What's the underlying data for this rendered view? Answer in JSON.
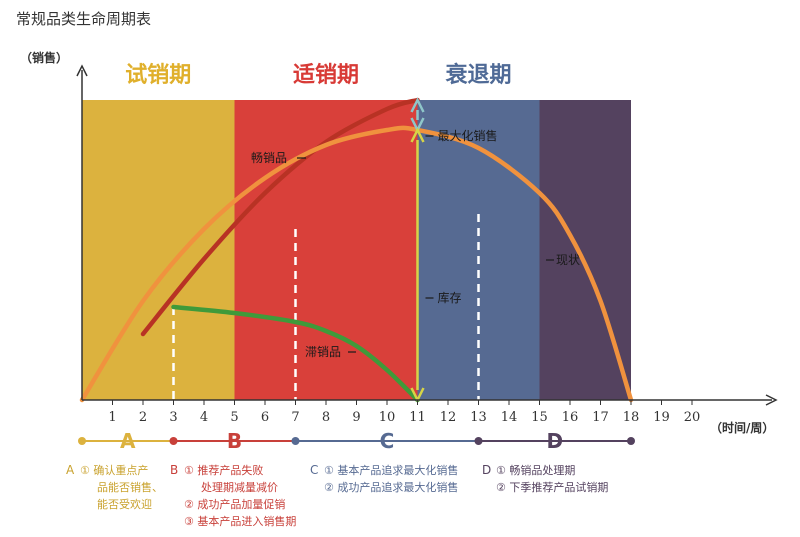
{
  "title": "常规品类生命周期表",
  "chart_data": {
    "type": "area",
    "title": "常规品类生命周期表",
    "ylabel": "（销售）",
    "xlabel": "（时间/周）",
    "x_ticks": [
      "1",
      "2",
      "3",
      "4",
      "5",
      "6",
      "7",
      "8",
      "9",
      "10",
      "11",
      "12",
      "13",
      "14",
      "15",
      "16",
      "17",
      "18",
      "19",
      "20"
    ],
    "xlim": [
      0,
      21
    ],
    "phases": [
      {
        "label": "试销期",
        "start": 0,
        "end": 5,
        "color": "#dcb23e",
        "label_color": "#e0b02c"
      },
      {
        "label": "适销期",
        "start": 5,
        "end": 11,
        "color": "#d9403a",
        "label_color": "#d83a36"
      },
      {
        "label": "衰退期",
        "start": 11,
        "end": 15,
        "color": "#566a92",
        "label_color": "#4f6a96"
      },
      {
        "label": "",
        "start": 15,
        "end": 18,
        "color": "#54425f",
        "label_color": ""
      }
    ],
    "curves": [
      {
        "name": "畅销品",
        "color": "#b83224",
        "points": [
          [
            2,
            0.22
          ],
          [
            4,
            0.47
          ],
          [
            6,
            0.69
          ],
          [
            8,
            0.86
          ],
          [
            10,
            0.97
          ],
          [
            11,
            1.0
          ]
        ]
      },
      {
        "name": "现状",
        "color": "#f0923e",
        "points": [
          [
            0,
            0
          ],
          [
            2,
            0.33
          ],
          [
            4,
            0.57
          ],
          [
            6,
            0.74
          ],
          [
            8,
            0.85
          ],
          [
            10,
            0.9
          ],
          [
            11,
            0.9
          ],
          [
            13,
            0.84
          ],
          [
            15,
            0.69
          ],
          [
            16,
            0.55
          ],
          [
            17,
            0.33
          ],
          [
            18,
            0
          ]
        ]
      },
      {
        "name": "滞销品",
        "color": "#3f9a3a",
        "points": [
          [
            3,
            0.31
          ],
          [
            5,
            0.29
          ],
          [
            7,
            0.26
          ],
          [
            8,
            0.23
          ],
          [
            9,
            0.18
          ],
          [
            10,
            0.1
          ],
          [
            11,
            0
          ]
        ]
      }
    ],
    "guide_lines_x": [
      3,
      7,
      13
    ],
    "arrow_labels": [
      "最大化销售",
      "库存"
    ],
    "segments": [
      {
        "label": "A",
        "start": 0,
        "end": 3,
        "color": "#dcb23e"
      },
      {
        "label": "B",
        "start": 3,
        "end": 7,
        "color": "#c8403a"
      },
      {
        "label": "C",
        "start": 7,
        "end": 13,
        "color": "#566a92"
      },
      {
        "label": "D",
        "start": 13,
        "end": 18,
        "color": "#54425f"
      }
    ]
  },
  "notes": {
    "A": {
      "head": "A",
      "color": "#dcb23e",
      "lines": [
        "① 确认重点产",
        "品能否销售、",
        "能否受欢迎"
      ]
    },
    "B": {
      "head": "B",
      "color": "#c8403a",
      "lines": [
        "① 推荐产品失败",
        "处理期减量减价",
        "② 成功产品加量促销",
        "③ 基本产品进入销售期"
      ]
    },
    "C": {
      "head": "C",
      "color": "#566a92",
      "lines": [
        "① 基本产品追求最大化销售",
        "② 成功产品追求最大化销售"
      ]
    },
    "D": {
      "head": "D",
      "color": "#54425f",
      "lines": [
        "① 畅销品处理期",
        "② 下季推荐产品试销期"
      ]
    }
  }
}
